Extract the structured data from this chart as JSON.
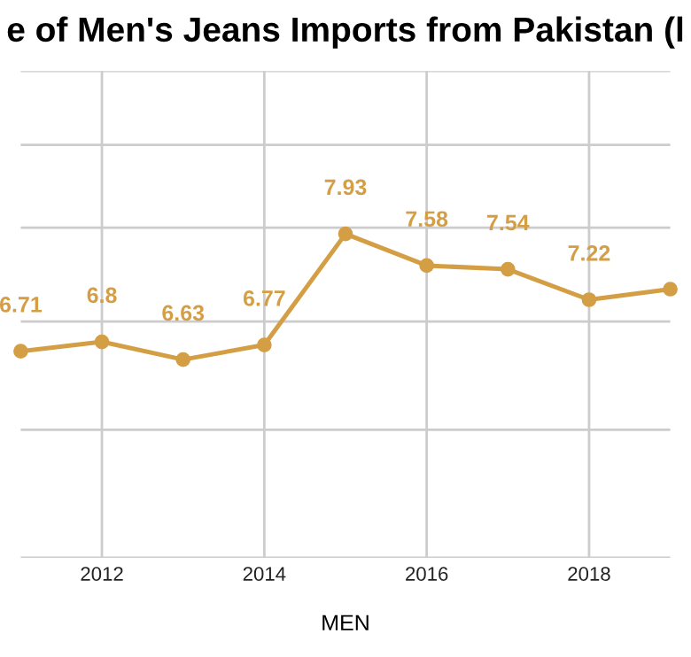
{
  "chart_data": {
    "type": "line",
    "title": "e of Men's Jeans Imports from Pakistan (l",
    "xlabel": "MEN",
    "x": [
      2011,
      2012,
      2013,
      2014,
      2015,
      2016,
      2017,
      2018,
      2019
    ],
    "series": [
      {
        "color": "#d49e45",
        "values": [
          6.71,
          6.8,
          6.63,
          6.77,
          7.93,
          7.58,
          7.54,
          7.22,
          7.33
        ],
        "value_labels": [
          "6.71",
          "6.8",
          "6.63",
          "6.77",
          "7.93",
          "7.58",
          "7.54",
          "7.22",
          null
        ]
      }
    ],
    "log": true,
    "ylim": [
      5,
      10
    ],
    "yticks": [
      {
        "value": 5,
        "label": null
      },
      {
        "value": 6,
        "label": null
      },
      {
        "value": 7,
        "label": null
      },
      {
        "value": 8,
        "label": null
      },
      {
        "value": 9,
        "label": null
      },
      {
        "value": 10,
        "label": null
      }
    ],
    "xlim": [
      2011,
      2019
    ],
    "xticks": [
      2012,
      2014,
      2016,
      2018
    ],
    "tick_labels": "x",
    "grid": true,
    "marker": "circle",
    "line_style": "solid",
    "legend": false
  }
}
